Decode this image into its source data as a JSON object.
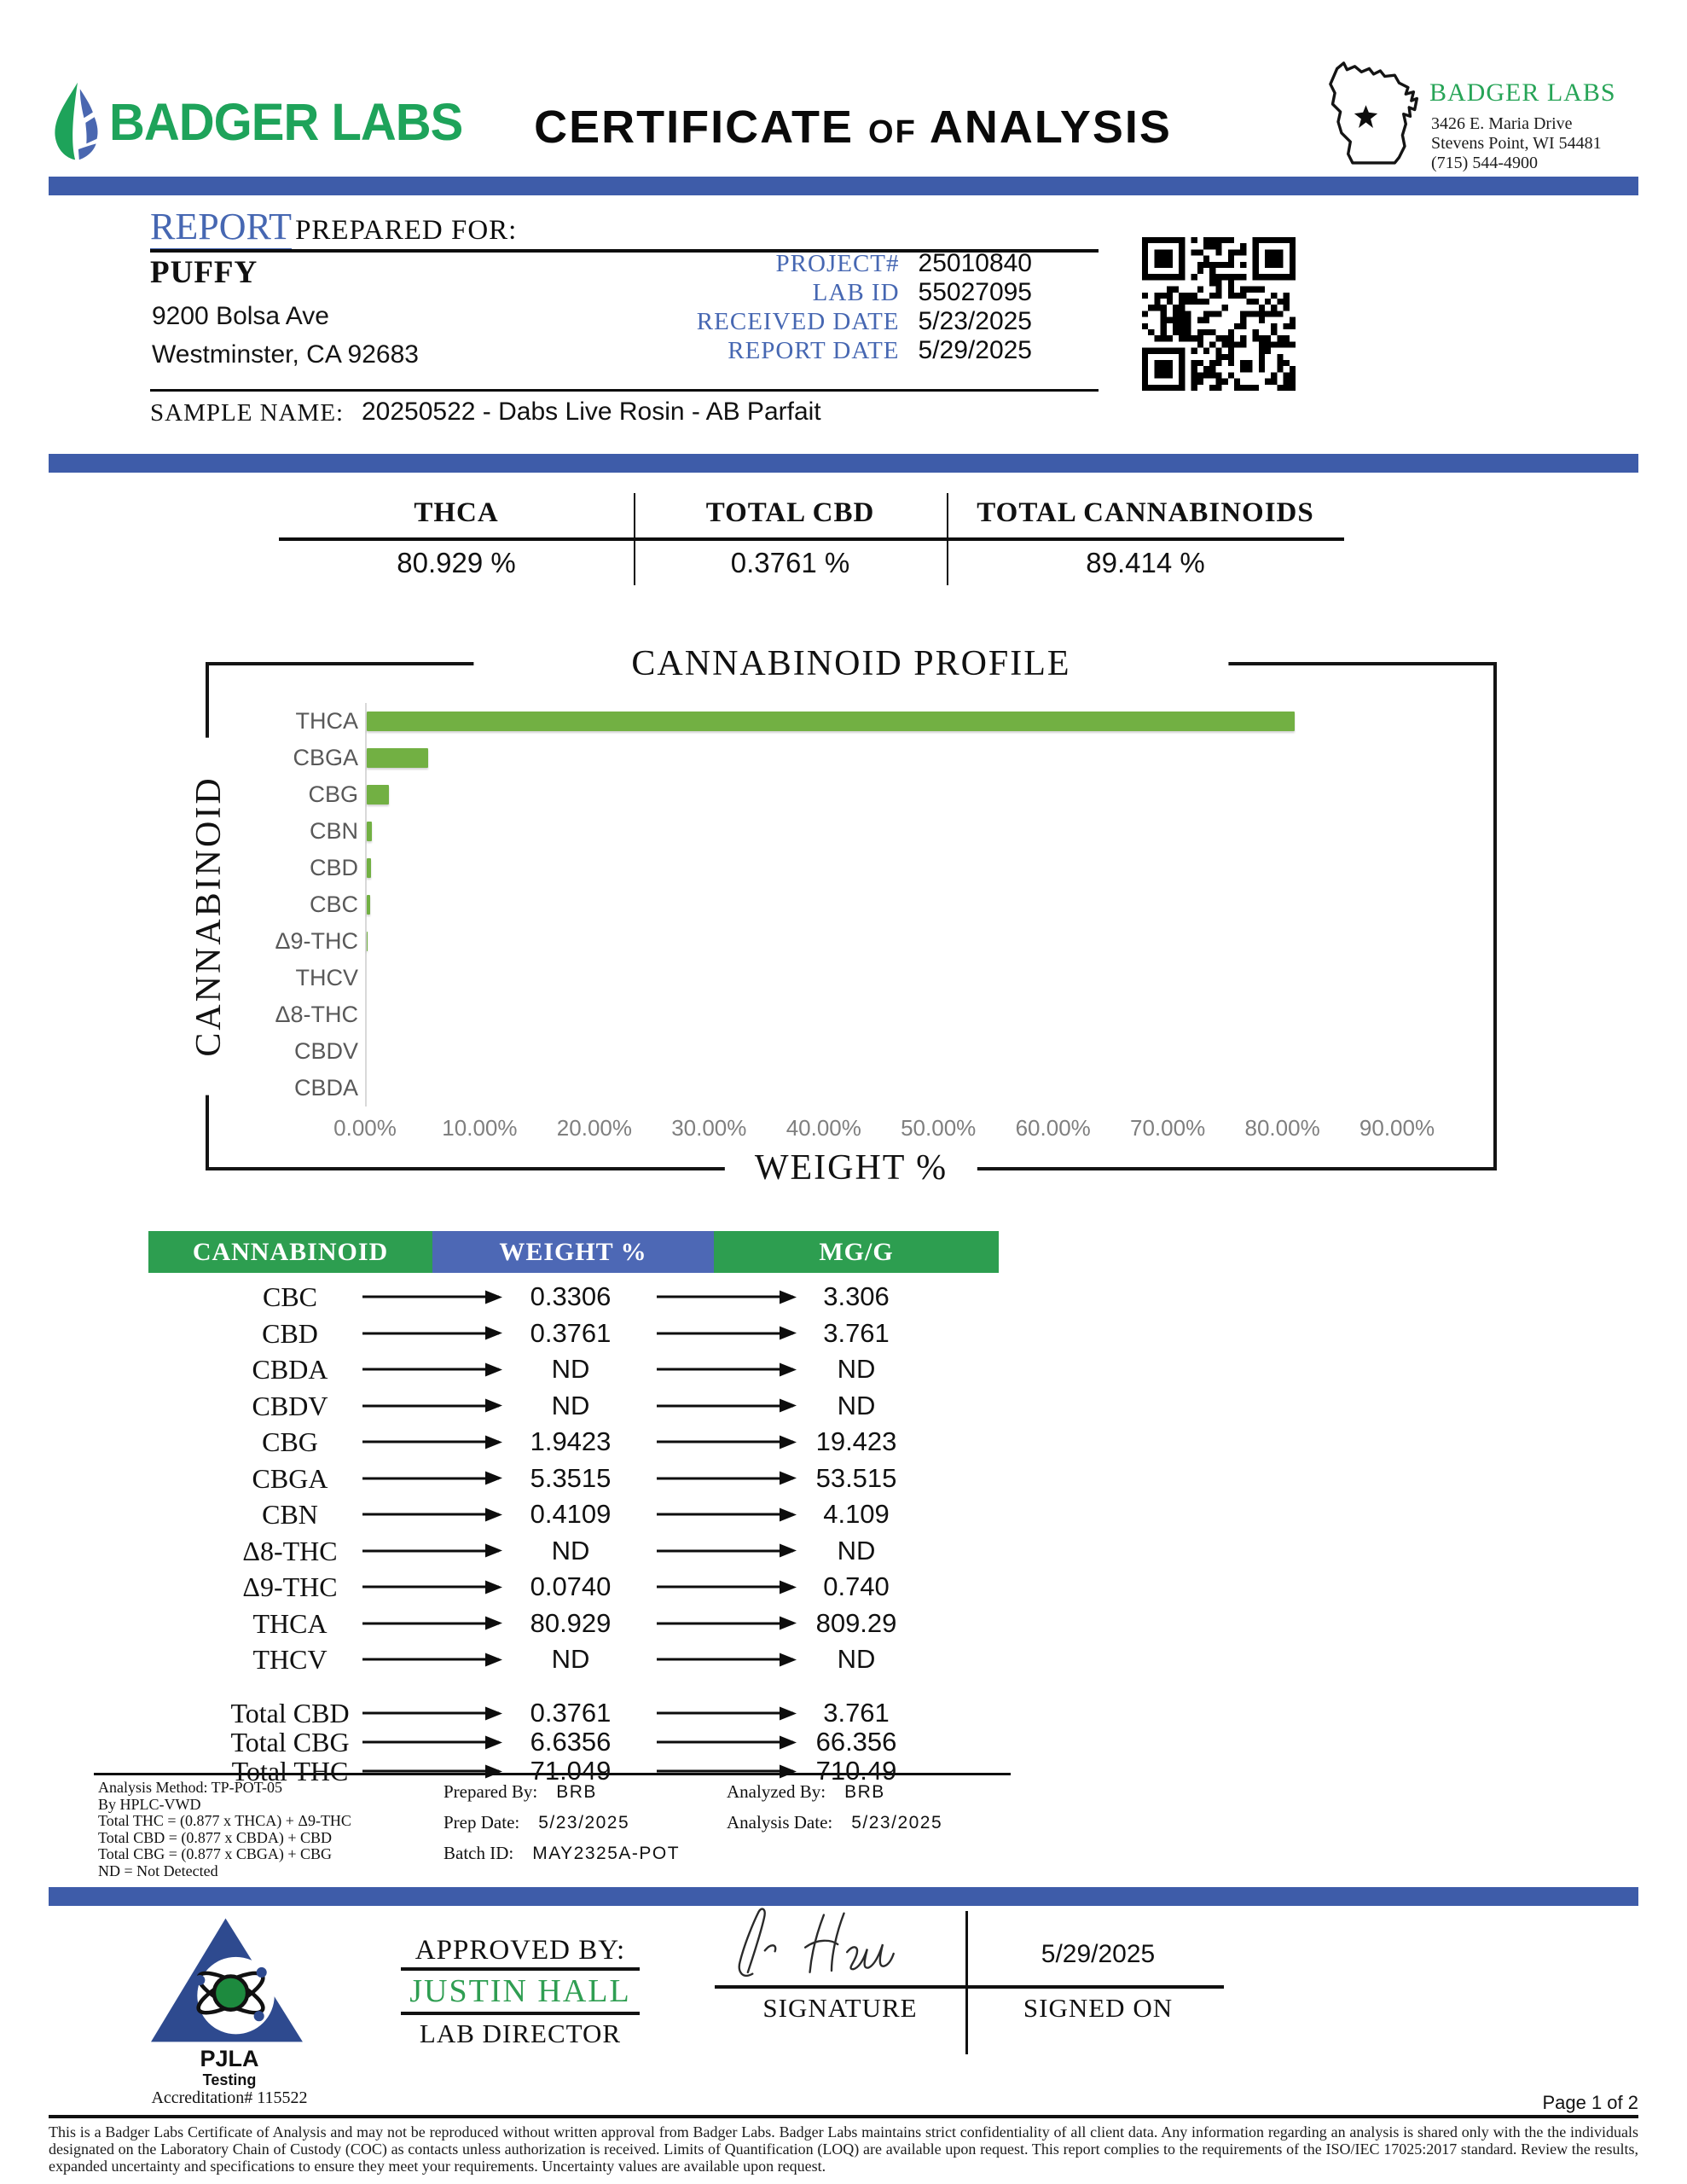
{
  "header": {
    "logo_text": "BADGER LABS",
    "title": "CERTIFICATE of ANALYSIS",
    "lab_info": {
      "name": "BADGER LABS",
      "address_line1": "3426 E. Maria Drive",
      "address_line2": "Stevens Point, WI 54481",
      "phone": "(715) 544-4900"
    }
  },
  "report": {
    "section_label": "REPORT",
    "section_label2": "PREPARED FOR:",
    "client_name": "PUFFY",
    "client_address1": "9200 Bolsa Ave",
    "client_address2": "Westminster, CA  92683",
    "fields": [
      {
        "label": "PROJECT#",
        "value": "25010840"
      },
      {
        "label": "LAB ID",
        "value": "55027095"
      },
      {
        "label": "RECEIVED DATE",
        "value": "5/23/2025"
      },
      {
        "label": "REPORT DATE",
        "value": "5/29/2025"
      }
    ],
    "sample_name_label": "SAMPLE NAME:",
    "sample_name": "20250522 - Dabs Live Rosin - AB Parfait"
  },
  "summary": {
    "columns": [
      {
        "label": "THCA",
        "value": "80.929 %"
      },
      {
        "label": "TOTAL CBD",
        "value": "0.3761 %"
      },
      {
        "label": "TOTAL CANNABINOIDS",
        "value": "89.414 %"
      }
    ]
  },
  "chart_data": {
    "type": "bar",
    "orientation": "horizontal",
    "title": "CANNABINOID PROFILE",
    "xlabel": "WEIGHT %",
    "ylabel": "CANNABINOID",
    "categories": [
      "THCA",
      "CBGA",
      "CBG",
      "CBN",
      "CBD",
      "CBC",
      "Δ9-THC",
      "THCV",
      "Δ8-THC",
      "CBDV",
      "CBDA"
    ],
    "values": [
      80.929,
      5.3515,
      1.9423,
      0.4109,
      0.3761,
      0.3306,
      0.074,
      0,
      0,
      0,
      0
    ],
    "xlim": [
      0,
      90
    ],
    "xticks": [
      "0.00%",
      "10.00%",
      "20.00%",
      "30.00%",
      "40.00%",
      "50.00%",
      "60.00%",
      "70.00%",
      "80.00%",
      "90.00%"
    ],
    "grid": false,
    "legend": false,
    "bar_color": "#72b043"
  },
  "table": {
    "headers": [
      {
        "label": "CANNABINOID",
        "color": "#2d9e50"
      },
      {
        "label": "WEIGHT %",
        "color": "#4d68b5"
      },
      {
        "label": "MG/G",
        "color": "#2d9e50"
      }
    ],
    "rows": [
      {
        "name": "CBC",
        "weight": "0.3306",
        "mgg": "3.306"
      },
      {
        "name": "CBD",
        "weight": "0.3761",
        "mgg": "3.761"
      },
      {
        "name": "CBDA",
        "weight": "ND",
        "mgg": "ND"
      },
      {
        "name": "CBDV",
        "weight": "ND",
        "mgg": "ND"
      },
      {
        "name": "CBG",
        "weight": "1.9423",
        "mgg": "19.423"
      },
      {
        "name": "CBGA",
        "weight": "5.3515",
        "mgg": "53.515"
      },
      {
        "name": "CBN",
        "weight": "0.4109",
        "mgg": "4.109"
      },
      {
        "name": "Δ8-THC",
        "weight": "ND",
        "mgg": "ND"
      },
      {
        "name": "Δ9-THC",
        "weight": "0.0740",
        "mgg": "0.740"
      },
      {
        "name": "THCA",
        "weight": "80.929",
        "mgg": "809.29"
      },
      {
        "name": "THCV",
        "weight": "ND",
        "mgg": "ND"
      }
    ],
    "total_rows": [
      {
        "name": "Total CBD",
        "weight": "0.3761",
        "mgg": "3.761"
      },
      {
        "name": "Total CBG",
        "weight": "6.6356",
        "mgg": "66.356"
      },
      {
        "name": "Total THC",
        "weight": "71.049",
        "mgg": "710.49"
      }
    ],
    "footnotes_left": [
      "Analysis Method: TP-POT-05",
      "By HPLC-VWD",
      "Total THC = (0.877 x  THCA) + Δ9-THC",
      "Total CBD = (0.877 x  CBDA) + CBD",
      "Total CBG = (0.877 x  CBGA) + CBG",
      "ND = Not Detected"
    ],
    "prep": {
      "prepared_by_label": "Prepared By:",
      "prepared_by": "BRB",
      "prep_date_label": "Prep Date:",
      "prep_date": "5/23/2025",
      "batch_label": "Batch ID:",
      "batch": "MAY2325A-POT"
    },
    "analysis": {
      "analyzed_by_label": "Analyzed By:",
      "analyzed_by": "BRB",
      "analysis_date_label": "Analysis Date:",
      "analysis_date": "5/23/2025"
    }
  },
  "footer": {
    "accreditation": {
      "org": "PJLA",
      "sub": "Testing",
      "number": "Accreditation# 115522"
    },
    "approved_by_label": "APPROVED BY:",
    "approver": "JUSTIN HALL",
    "approver_title": "LAB DIRECTOR",
    "signature_label": "SIGNATURE",
    "signed_on_label": "SIGNED ON",
    "signed_on_date": "5/29/2025",
    "page": "Page 1 of 2",
    "disclaimer": "This is a Badger Labs Certificate of Analysis and may not be reproduced without written approval from Badger Labs. Badger Labs maintains strict confidentiality of all client data. Any information regarding an analysis is shared only with the the individuals designated on the Laboratory Chain of Custody (COC) as contacts unless authorization is received. Limits of Quantification (LOQ) are available upon request. This report complies to the requirements of the ISO/IEC 17025:2017 standard. Review the results, expanded uncertainty and specifications to ensure they meet your requirements. Uncertainty values are available upon request."
  },
  "colors": {
    "accent_blue": "#3e5ca9",
    "label_blue": "#4667b2",
    "brand_green": "#1ea35a",
    "bar_green": "#72b043"
  }
}
